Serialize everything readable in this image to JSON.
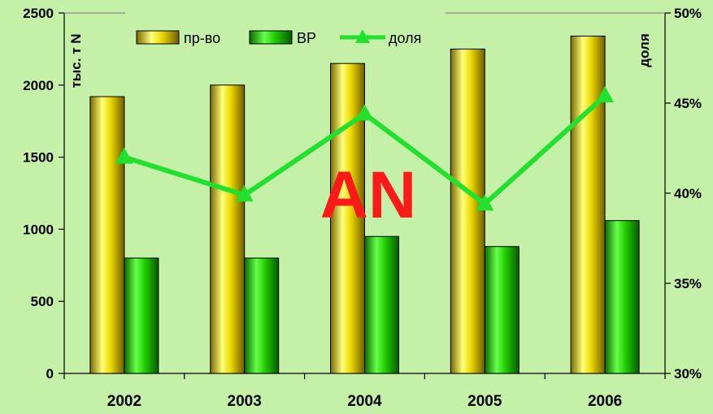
{
  "chart_data": {
    "type": "bar",
    "categories": [
      "2002",
      "2003",
      "2004",
      "2005",
      "2006"
    ],
    "series": [
      {
        "name": "пр-во",
        "type": "bar",
        "axis": "left",
        "color": "#e6d000",
        "values": [
          1920,
          2000,
          2150,
          2250,
          2340
        ]
      },
      {
        "name": "ВР",
        "type": "bar",
        "axis": "left",
        "color": "#22c800",
        "values": [
          800,
          800,
          950,
          880,
          1060
        ]
      },
      {
        "name": "доля",
        "type": "line",
        "axis": "right",
        "color": "#22e02e",
        "values": [
          42.0,
          39.9,
          44.4,
          39.4,
          45.4
        ]
      }
    ],
    "ylabel": "тыс. т N",
    "y2label": "доля",
    "ylim": [
      0,
      2500
    ],
    "y2lim": [
      30,
      50
    ],
    "yticks": [
      "0",
      "500",
      "1000",
      "1500",
      "2000",
      "2500"
    ],
    "y2ticks": [
      "30%",
      "35%",
      "40%",
      "45%",
      "50%"
    ],
    "legend_position": "top",
    "grid": false,
    "watermark": "AN",
    "watermark_color": "#ff1a1a",
    "background": "#c4f0a7"
  }
}
